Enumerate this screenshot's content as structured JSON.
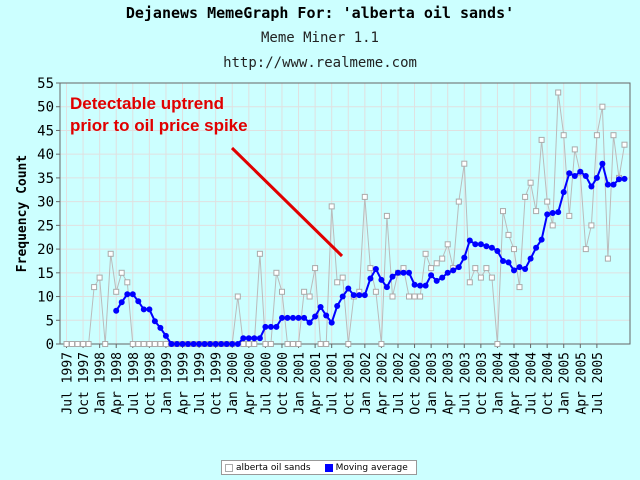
{
  "header": {
    "title": "Dejanews MemeGraph For: 'alberta oil sands'",
    "subtitle": "Meme Miner 1.1",
    "url": "http://www.realmeme.com"
  },
  "annotation": {
    "text_line1": "Detectable uptrend",
    "text_line2": "prior to oil price spike",
    "color": "#e00000"
  },
  "legend": {
    "series1": "alberta oil sands",
    "series2": "Moving average"
  },
  "chart_data": {
    "type": "line",
    "ylabel": "Frequency Count",
    "xlabel": "",
    "ylim": [
      0,
      55
    ],
    "yticks": [
      0,
      5,
      10,
      15,
      20,
      25,
      30,
      35,
      40,
      45,
      50,
      55
    ],
    "grid": true,
    "legend_position": "bottom",
    "xtick_labels": [
      "Jul 1997",
      "Oct 1997",
      "Jan 1998",
      "Apr 1998",
      "Jul 1998",
      "Oct 1998",
      "Jan 1999",
      "Apr 1999",
      "Jul 1999",
      "Oct 1999",
      "Jan 2000",
      "Apr 2000",
      "Jul 2000",
      "Oct 2000",
      "Jan 2001",
      "Apr 2001",
      "Jul 2001",
      "Oct 2001",
      "Jan 2002",
      "Apr 2002",
      "Jul 2002",
      "Oct 2002",
      "Jan 2003",
      "Apr 2003",
      "Jul 2003",
      "Oct 2003",
      "Jan 2004",
      "Apr 2004",
      "Jul 2004",
      "Oct 2004",
      "Jan 2005",
      "Apr 2005",
      "Jul 2005"
    ],
    "x_start": "Jul 1997",
    "series": [
      {
        "name": "alberta oil sands",
        "color": "#bbbbbb",
        "values": [
          0,
          0,
          0,
          0,
          0,
          12,
          14,
          0,
          19,
          11,
          15,
          13,
          0,
          0,
          0,
          0,
          0,
          0,
          0,
          0,
          0,
          0,
          0,
          0,
          0,
          0,
          0,
          0,
          0,
          0,
          0,
          10,
          0,
          0,
          0,
          19,
          0,
          0,
          15,
          11,
          0,
          0,
          0,
          11,
          10,
          16,
          0,
          0,
          29,
          13,
          14,
          0,
          10,
          11,
          31,
          16,
          11,
          0,
          27,
          10,
          15,
          16,
          10,
          10,
          10,
          19,
          16,
          17,
          18,
          21,
          16,
          30,
          38,
          13,
          16,
          14,
          16,
          14,
          0,
          28,
          23,
          20,
          12,
          31,
          34,
          28,
          43,
          30,
          25,
          53,
          44,
          27,
          41,
          36,
          20,
          25,
          44,
          50,
          18,
          44,
          35,
          42
        ]
      },
      {
        "name": "Moving average",
        "color": "#0000ff",
        "start_index": 9,
        "values": [
          7,
          8.8,
          10.5,
          10.5,
          9,
          7.3,
          7.3,
          4.8,
          3.4,
          1.7,
          0,
          0,
          0,
          0,
          0,
          0,
          0,
          0,
          0,
          0,
          0,
          0,
          0,
          1.2,
          1.2,
          1.2,
          1.2,
          3.6,
          3.6,
          3.6,
          5.5,
          5.5,
          5.5,
          5.5,
          5.5,
          4.5,
          5.8,
          7.8,
          6,
          4.5,
          8,
          10,
          11.7,
          10.3,
          10.3,
          10.3,
          13.8,
          15.8,
          13.5,
          12,
          14.2,
          15,
          15,
          15,
          12.5,
          12.3,
          12.3,
          14.5,
          13.3,
          14,
          15,
          15.5,
          16.2,
          18.2,
          21.8,
          21,
          21,
          20.6,
          20.3,
          19.6,
          17.5,
          17.2,
          15.5,
          16.2,
          15.8,
          18,
          20.3,
          22,
          27.3,
          27.6,
          27.8,
          32,
          36,
          35.4,
          36.3,
          35.4,
          33.2,
          35,
          38,
          33.6,
          33.6,
          34.7,
          34.8
        ]
      }
    ]
  }
}
